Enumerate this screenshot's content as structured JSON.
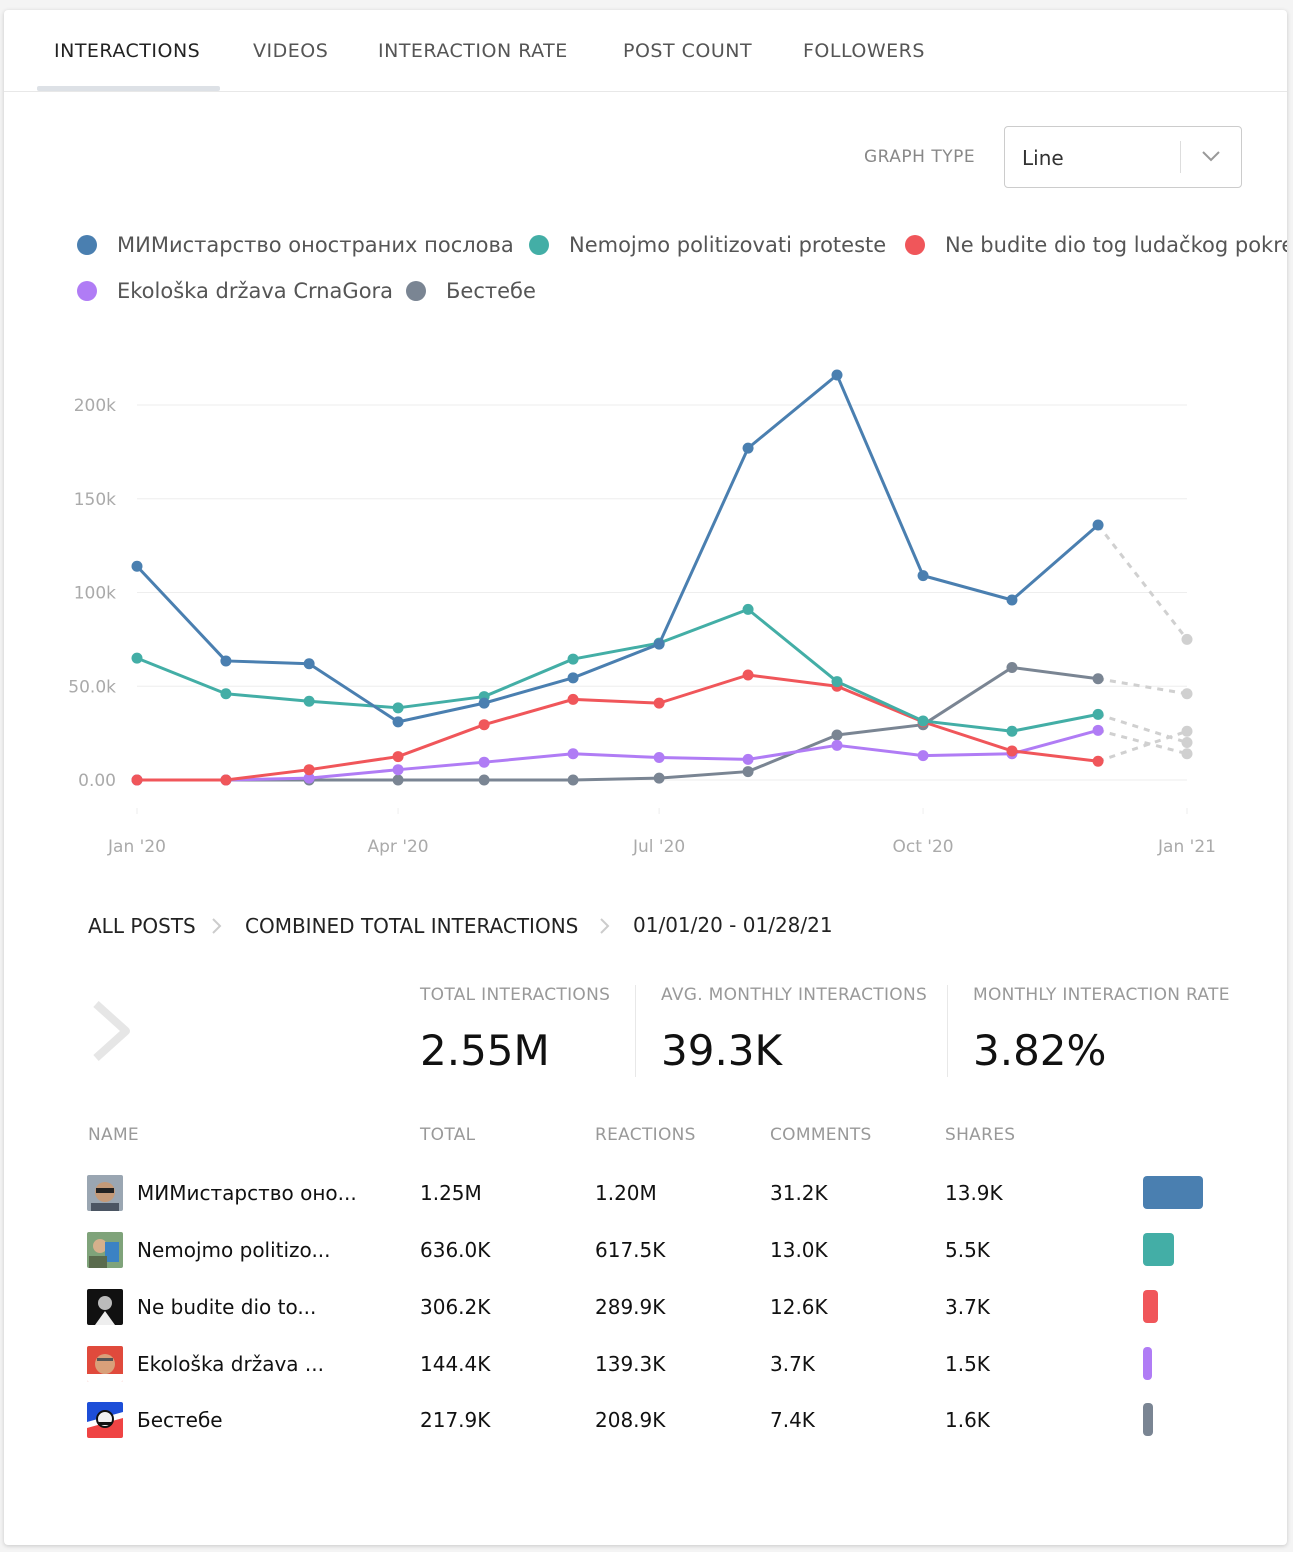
{
  "tabs": [
    {
      "label": "INTERACTIONS",
      "active": true
    },
    {
      "label": "VIDEOS",
      "active": false
    },
    {
      "label": "INTERACTION RATE",
      "active": false
    },
    {
      "label": "POST COUNT",
      "active": false
    },
    {
      "label": "FOLLOWERS",
      "active": false
    }
  ],
  "graph_type": {
    "label": "GRAPH TYPE",
    "value": "Line"
  },
  "legend": [
    {
      "name": "МИМистарство оностраних послова",
      "color": "#4a7fb0"
    },
    {
      "name": "Nemojmo politizovati proteste",
      "color": "#43aea6"
    },
    {
      "name": "Ne budite dio tog ludačkog pokreta",
      "color": "#f0565a"
    },
    {
      "name": "Ekološka država CrnaGora",
      "color": "#b07cf5"
    },
    {
      "name": "Бестебе",
      "color": "#7a8593"
    }
  ],
  "chart_data": {
    "type": "line",
    "x_tick_labels": [
      "Jan '20",
      "Apr '20",
      "Jul '20",
      "Oct '20",
      "Jan '21"
    ],
    "y_tick_labels": [
      "0.00",
      "50.0k",
      "100k",
      "150k",
      "200k"
    ],
    "ylim": [
      0,
      200000
    ],
    "grid": true,
    "x": [
      "2020-01-01",
      "2020-02-01",
      "2020-03-01",
      "2020-04-01",
      "2020-05-01",
      "2020-06-01",
      "2020-07-01",
      "2020-08-01",
      "2020-09-01",
      "2020-10-01",
      "2020-11-01",
      "2020-12-01"
    ],
    "projected_x": "2021-01-01",
    "series": [
      {
        "name": "МИМистарство оностраних послова",
        "color": "#4a7fb0",
        "values": [
          114000,
          63500,
          62000,
          31000,
          41000,
          54500,
          72500,
          177000,
          216000,
          109000,
          96000,
          136000
        ],
        "projected": 75000
      },
      {
        "name": "Nemojmo politizovati proteste",
        "color": "#43aea6",
        "values": [
          65000,
          46000,
          42000,
          38500,
          44500,
          64500,
          73000,
          91000,
          52500,
          31500,
          26000,
          35000
        ],
        "projected": 20000
      },
      {
        "name": "Ne budite dio tog ludačkog pokreta",
        "color": "#f0565a",
        "values": [
          0,
          0,
          5500,
          12500,
          29500,
          43000,
          41000,
          56000,
          50000,
          31000,
          15500,
          10000
        ],
        "projected": 26000
      },
      {
        "name": "Ekološka država CrnaGora",
        "color": "#b07cf5",
        "values": [
          0,
          0,
          1000,
          5500,
          9500,
          14000,
          12000,
          11000,
          18500,
          13000,
          14000,
          26500
        ],
        "projected": 14000
      },
      {
        "name": "Бестебе",
        "color": "#7a8593",
        "values": [
          0,
          0,
          0,
          0,
          0,
          0,
          1000,
          4500,
          24000,
          29500,
          60000,
          54000
        ],
        "projected": 46000
      }
    ]
  },
  "breadcrumb": {
    "item1": "ALL POSTS",
    "item2": "COMBINED TOTAL INTERACTIONS",
    "date_range": "01/01/20 - 01/28/21"
  },
  "stats": [
    {
      "label": "TOTAL INTERACTIONS",
      "value": "2.55M"
    },
    {
      "label": "AVG. MONTHLY INTERACTIONS",
      "value": "39.3K"
    },
    {
      "label": "MONTHLY INTERACTION RATE",
      "value": "3.82%"
    }
  ],
  "table": {
    "headers": {
      "name": "NAME",
      "total": "TOTAL",
      "reactions": "REACTIONS",
      "comments": "COMMENTS",
      "shares": "SHARES"
    },
    "rows": [
      {
        "name": "МИМистарство оно...",
        "total": "1.25M",
        "reactions": "1.20M",
        "comments": "31.2K",
        "shares": "13.9K",
        "color": "#4a7fb0",
        "share": 1.0
      },
      {
        "name": "Nemojmo politizo...",
        "total": "636.0K",
        "reactions": "617.5K",
        "comments": "13.0K",
        "shares": "5.5K",
        "color": "#43aea6",
        "share": 0.509
      },
      {
        "name": "Ne budite dio to...",
        "total": "306.2K",
        "reactions": "289.9K",
        "comments": "12.6K",
        "shares": "3.7K",
        "color": "#f0565a",
        "share": 0.245
      },
      {
        "name": "Ekološka država ...",
        "total": "144.4K",
        "reactions": "139.3K",
        "comments": "3.7K",
        "shares": "1.5K",
        "color": "#b07cf5",
        "share": 0.116
      },
      {
        "name": "Бестебе",
        "total": "217.9K",
        "reactions": "208.9K",
        "comments": "7.4K",
        "shares": "1.6K",
        "color": "#7a8593",
        "share": 0.174
      }
    ]
  }
}
